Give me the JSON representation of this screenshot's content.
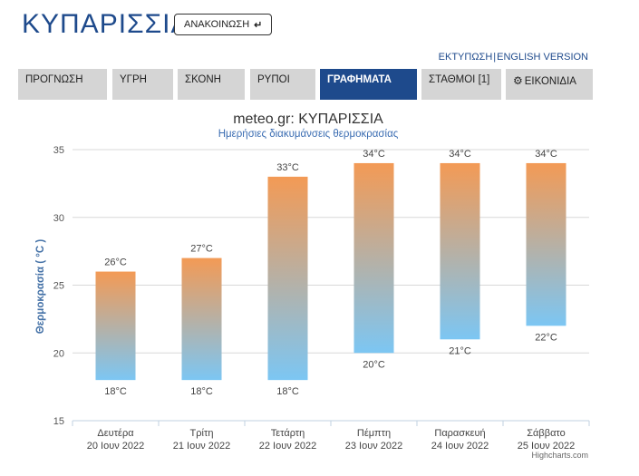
{
  "header": {
    "city": "ΚΥΠΑΡΙΣΣΙΑ",
    "announce_label": "ΑΝΑΚΟΙΝΩΣΗ",
    "announce_icon": "return-arrow-icon",
    "print_link": "ΕΚΤΥΠΩΣΗ",
    "separator": "|",
    "english_link": "ENGLISH VERSION"
  },
  "tabs": [
    {
      "label": "ΠΡΟΓΝΩΣΗ",
      "active": false
    },
    {
      "label": "ΥΓΡΗ",
      "active": false
    },
    {
      "label": "ΣΚΟΝΗ",
      "active": false
    },
    {
      "label": "ΡΥΠΟΙ",
      "active": false
    },
    {
      "label": "ΓΡΑΦΗΜΑΤΑ",
      "active": true
    },
    {
      "label": "ΣΤΑΘΜΟΙ [1]",
      "active": false
    },
    {
      "label": "ΕΙΚΟΝΙΔΙΑ",
      "active": false,
      "icon": "gear-icon"
    }
  ],
  "colors": {
    "brand": "#1e4a8c",
    "bar_top": "#f39a55",
    "bar_bottom": "#7cc6f3",
    "tab_inactive": "#d5d5d5"
  },
  "chart_data": {
    "type": "columnrange",
    "title": "meteo.gr: ΚΥΠΑΡΙΣΣΙΑ",
    "subtitle": "Ημερήσιες διακυμάνσεις θερμοκρασίας",
    "ylabel": "Θερμοκρασία ( °C )",
    "ylim": [
      15,
      35
    ],
    "yticks": [
      15,
      20,
      25,
      30,
      35
    ],
    "grid": true,
    "categories": [
      {
        "day": "Δευτέρα",
        "date": "20 Ιουν 2022"
      },
      {
        "day": "Τρίτη",
        "date": "21 Ιουν 2022"
      },
      {
        "day": "Τετάρτη",
        "date": "22 Ιουν 2022"
      },
      {
        "day": "Πέμπτη",
        "date": "23 Ιουν 2022"
      },
      {
        "day": "Παρασκευή",
        "date": "24 Ιουν 2022"
      },
      {
        "day": "Σάββατο",
        "date": "25 Ιουν 2022"
      }
    ],
    "series": [
      {
        "low": [
          18,
          18,
          18,
          20,
          21,
          22
        ],
        "high": [
          26,
          27,
          33,
          34,
          34,
          34
        ]
      }
    ],
    "unit": "°C",
    "credit": "Highcharts.com"
  }
}
